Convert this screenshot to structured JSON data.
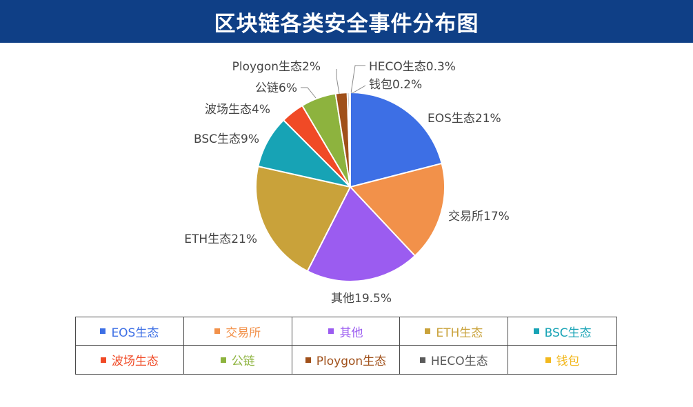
{
  "header": {
    "title": "区块链各类安全事件分布图",
    "background": "#0f3f86"
  },
  "chart_data": {
    "type": "pie",
    "title": "区块链各类安全事件分布图",
    "unit": "%",
    "slices": [
      {
        "name": "EOS生态",
        "value": 21,
        "label": "EOS生态21%",
        "color": "#3d6fe5"
      },
      {
        "name": "交易所",
        "value": 17,
        "label": "交易所17%",
        "color": "#f2914a"
      },
      {
        "name": "其他",
        "value": 19.5,
        "label": "其他19.5%",
        "color": "#9b5cf0"
      },
      {
        "name": "ETH生态",
        "value": 21,
        "label": "ETH生态21%",
        "color": "#c9a23a"
      },
      {
        "name": "BSC生态",
        "value": 9,
        "label": "BSC生态9%",
        "color": "#17a3b5"
      },
      {
        "name": "波场生态",
        "value": 4,
        "label": "波场生态4%",
        "color": "#f04a26"
      },
      {
        "name": "公链",
        "value": 6,
        "label": "公链6%",
        "color": "#8db33e"
      },
      {
        "name": "Ploygon生态",
        "value": 2,
        "label": "Ploygon生态2%",
        "color": "#a0501a"
      },
      {
        "name": "HECO生态",
        "value": 0.3,
        "label": "HECO生态0.3%",
        "color": "#5a5a5a"
      },
      {
        "name": "钱包",
        "value": 0.2,
        "label": "钱包0.2%",
        "color": "#f2b81e"
      }
    ],
    "legend_position": "bottom"
  },
  "legend": {
    "items": [
      {
        "label": "EOS生态",
        "color": "#3d6fe5"
      },
      {
        "label": "交易所",
        "color": "#f2914a"
      },
      {
        "label": "其他",
        "color": "#9b5cf0"
      },
      {
        "label": "ETH生态",
        "color": "#c9a23a"
      },
      {
        "label": "BSC生态",
        "color": "#17a3b5"
      },
      {
        "label": "波场生态",
        "color": "#f04a26"
      },
      {
        "label": "公链",
        "color": "#8db33e"
      },
      {
        "label": "Ploygon生态",
        "color": "#a0501a"
      },
      {
        "label": "HECO生态",
        "color": "#5a5a5a"
      },
      {
        "label": "钱包",
        "color": "#f2b81e"
      }
    ]
  }
}
